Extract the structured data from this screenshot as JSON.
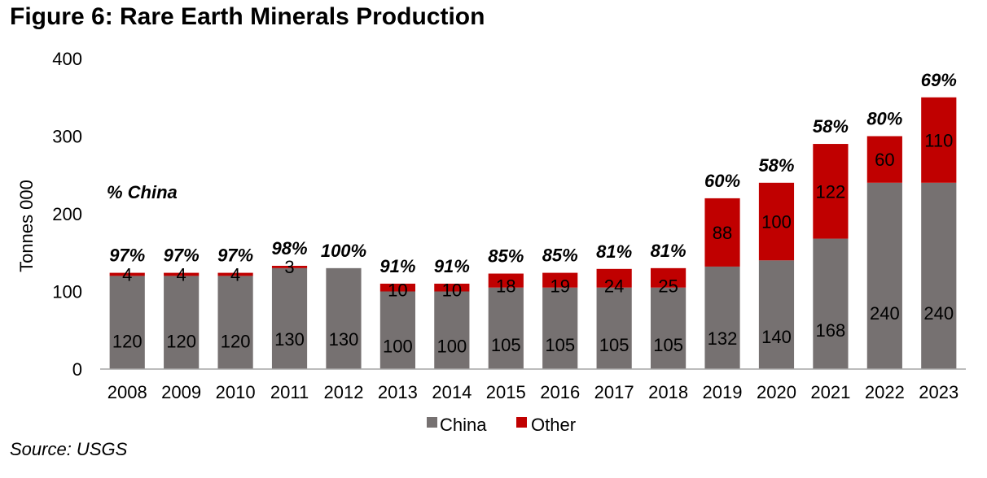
{
  "figure_title": "Figure 6: Rare Earth Minerals Production",
  "source": "Source: USGS",
  "colors": {
    "china": "#767171",
    "other": "#c00000",
    "axis": "#a6a6a6"
  },
  "chart_data": {
    "type": "bar",
    "stacked": true,
    "title": "",
    "ylabel": "Tonnes 000",
    "xlabel": "",
    "ylim": [
      0,
      400
    ],
    "yticks": [
      0,
      100,
      200,
      300,
      400
    ],
    "grid": false,
    "legend_position": "bottom",
    "categories": [
      "2008",
      "2009",
      "2010",
      "2011",
      "2012",
      "2013",
      "2014",
      "2015",
      "2016",
      "2017",
      "2018",
      "2019",
      "2020",
      "2021",
      "2022",
      "2023"
    ],
    "series": [
      {
        "name": "China",
        "values": [
          120,
          120,
          120,
          130,
          130,
          100,
          100,
          105,
          105,
          105,
          105,
          132,
          140,
          168,
          240,
          240
        ]
      },
      {
        "name": "Other",
        "values": [
          4,
          4,
          4,
          3,
          0,
          10,
          10,
          18,
          19,
          24,
          25,
          88,
          100,
          122,
          60,
          110
        ]
      }
    ],
    "pct_china_label": "% China",
    "pct_china": [
      "97%",
      "97%",
      "97%",
      "98%",
      "100%",
      "91%",
      "91%",
      "85%",
      "85%",
      "81%",
      "81%",
      "60%",
      "58%",
      "58%",
      "80%",
      "69%"
    ]
  }
}
